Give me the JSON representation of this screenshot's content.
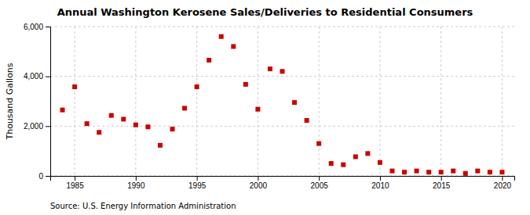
{
  "chart_data": {
    "type": "scatter",
    "title": "Annual Washington Kerosene Sales/Deliveries to Residential Consumers",
    "ylabel": "Thousand Gallons",
    "annotations": [
      "Source: U.S. Energy Information Administration"
    ],
    "x": [
      1984,
      1985,
      1986,
      1987,
      1988,
      1989,
      1990,
      1991,
      1992,
      1993,
      1994,
      1995,
      1996,
      1997,
      1998,
      1999,
      2000,
      2001,
      2002,
      2003,
      2004,
      2005,
      2006,
      2007,
      2008,
      2009,
      2010,
      2011,
      2012,
      2013,
      2014,
      2015,
      2016,
      2017,
      2018,
      2019,
      2020
    ],
    "values": [
      2650,
      3580,
      2100,
      1750,
      2430,
      2280,
      2050,
      1970,
      1230,
      1880,
      2720,
      3580,
      4650,
      5600,
      5200,
      3680,
      2680,
      4300,
      4200,
      2950,
      2230,
      1300,
      500,
      450,
      770,
      900,
      540,
      200,
      150,
      200,
      150,
      150,
      200,
      100,
      200,
      150,
      150
    ],
    "color": "#cc0000",
    "marker": "square",
    "xlim": [
      1983,
      2021
    ],
    "ylim": [
      0,
      6000
    ],
    "xticks": [
      1985,
      1990,
      1995,
      2000,
      2005,
      2010,
      2015,
      2020
    ],
    "yticks": [
      0,
      {
        "value": 2000,
        "label": "2,000"
      },
      {
        "value": 4000,
        "label": "4,000"
      },
      {
        "value": 6000,
        "label": "6,000"
      }
    ],
    "grid": true
  }
}
